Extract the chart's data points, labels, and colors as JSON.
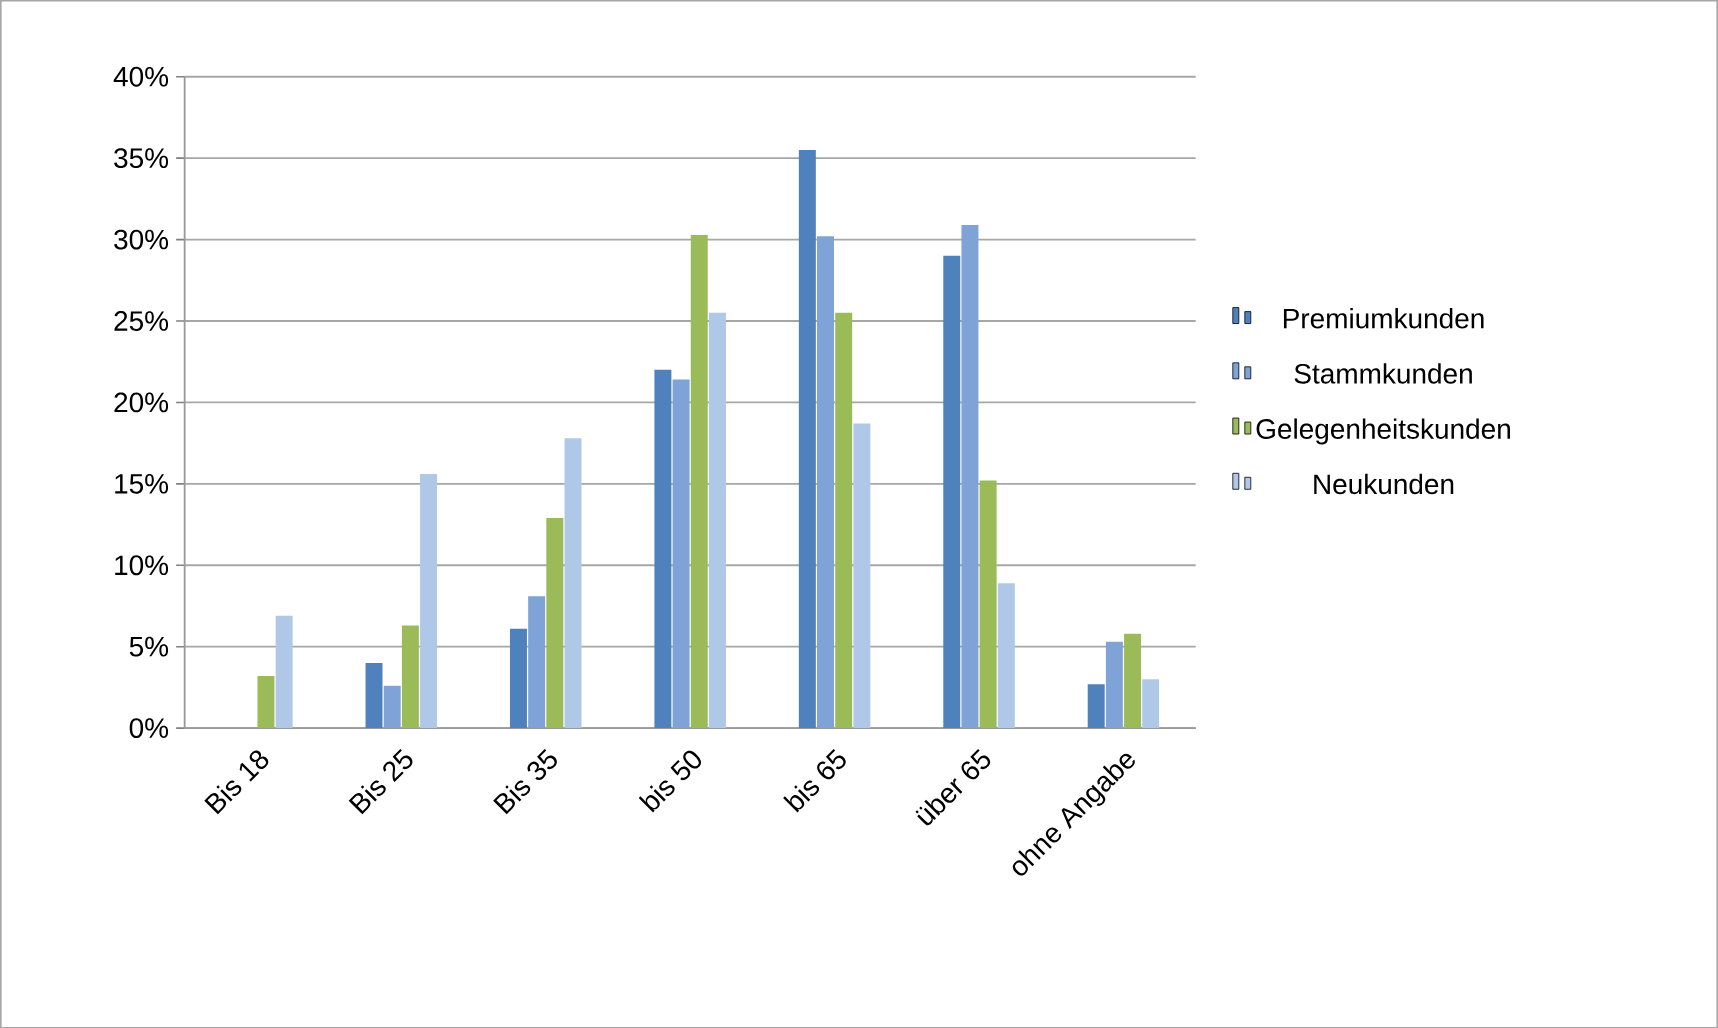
{
  "chart_data": {
    "type": "bar",
    "categories": [
      "Bis 18",
      "Bis 25",
      "Bis 35",
      "bis 50",
      "bis 65",
      "über 65",
      "ohne Angabe"
    ],
    "series": [
      {
        "name": "Premiumkunden",
        "color": "#4f81bd",
        "values": [
          0,
          4.0,
          6.1,
          22.0,
          35.5,
          29.0,
          2.7
        ]
      },
      {
        "name": "Stammkunden",
        "color": "#7fa3d6",
        "values": [
          0,
          2.6,
          8.1,
          21.4,
          30.2,
          30.9,
          5.3
        ]
      },
      {
        "name": "Gelegenheitskunden",
        "color": "#9bbb59",
        "values": [
          3.2,
          6.3,
          12.9,
          30.3,
          25.5,
          15.2,
          5.8
        ]
      },
      {
        "name": "Neukunden",
        "color": "#b0c8e8",
        "values": [
          6.9,
          15.6,
          17.8,
          25.5,
          18.7,
          8.9,
          3.0
        ]
      }
    ],
    "ylim": [
      0,
      40
    ],
    "yticks": [
      {
        "value": 0,
        "label": "0%"
      },
      {
        "value": 5,
        "label": "5%"
      },
      {
        "value": 10,
        "label": "10%"
      },
      {
        "value": 15,
        "label": "15%"
      },
      {
        "value": 20,
        "label": "20%"
      },
      {
        "value": 25,
        "label": "25%"
      },
      {
        "value": 30,
        "label": "30%"
      },
      {
        "value": 35,
        "label": "35%"
      },
      {
        "value": 40,
        "label": "40%"
      }
    ],
    "grid": "y",
    "legend": "right"
  }
}
